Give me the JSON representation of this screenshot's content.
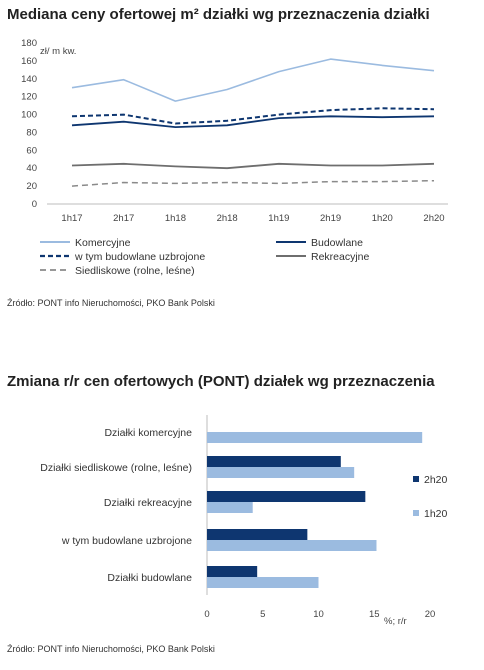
{
  "chart_data": [
    {
      "type": "line",
      "title": "Mediana ceny ofertowej m² działki wg przeznaczenia działki",
      "ylabel": "zł/ m kw.",
      "xlabel": "",
      "x": [
        "1h17",
        "2h17",
        "1h18",
        "2h18",
        "1h19",
        "2h19",
        "1h20",
        "2h20"
      ],
      "ylim": [
        0,
        180
      ],
      "yticks": [
        0,
        20,
        40,
        60,
        80,
        100,
        120,
        140,
        160,
        180
      ],
      "grid": false,
      "legend": "bottom",
      "series": [
        {
          "name": "Komercyjne",
          "color": "#9bbbe0",
          "dash": "solid",
          "width": 1.6,
          "values": [
            130,
            139,
            115,
            128,
            148,
            162,
            155,
            149
          ]
        },
        {
          "name": "Budowlane",
          "color": "#0e3670",
          "dash": "solid",
          "width": 1.8,
          "values": [
            88,
            92,
            86,
            88,
            96,
            98,
            97,
            98
          ]
        },
        {
          "name": "w tym budowlane uzbrojone",
          "color": "#0e3670",
          "dash": "dashed",
          "width": 2.0,
          "values": [
            98,
            100,
            90,
            93,
            100,
            105,
            107,
            106
          ]
        },
        {
          "name": "Rekreacyjne",
          "color": "#6e6e6e",
          "dash": "solid",
          "width": 1.8,
          "values": [
            43,
            45,
            42,
            40,
            45,
            43,
            43,
            45
          ]
        },
        {
          "name": "Siedliskowe (rolne, leśne)",
          "color": "#8a8a8a",
          "dash": "dashed",
          "width": 1.5,
          "values": [
            20,
            24,
            23,
            24,
            23,
            25,
            25,
            26
          ]
        }
      ],
      "source": "Źródło: PONT info Nieruchomości, PKO Bank Polski"
    },
    {
      "type": "bar",
      "orientation": "horizontal",
      "title": "Zmiana r/r cen ofertowych (PONT) działek wg przeznaczenia",
      "xlabel": "%; r/r",
      "xlim": [
        0,
        20
      ],
      "xticks": [
        0,
        5,
        10,
        15,
        20
      ],
      "categories": [
        "Działki komercyjne",
        "Działki siedliskowe (rolne, leśne)",
        "Działki rekreacyjne",
        "w tym budowlane uzbrojone",
        "Działki budowlane"
      ],
      "series": [
        {
          "name": "2h20",
          "color": "#0e3670",
          "values": [
            null,
            12.0,
            14.2,
            9.0,
            4.5
          ]
        },
        {
          "name": "1h20",
          "color": "#9bbbe0",
          "values": [
            19.3,
            13.2,
            4.1,
            15.2,
            10.0
          ]
        }
      ],
      "legend": "right",
      "source": "Źródło: PONT info Nieruchomości, PKO Bank Polski"
    }
  ]
}
